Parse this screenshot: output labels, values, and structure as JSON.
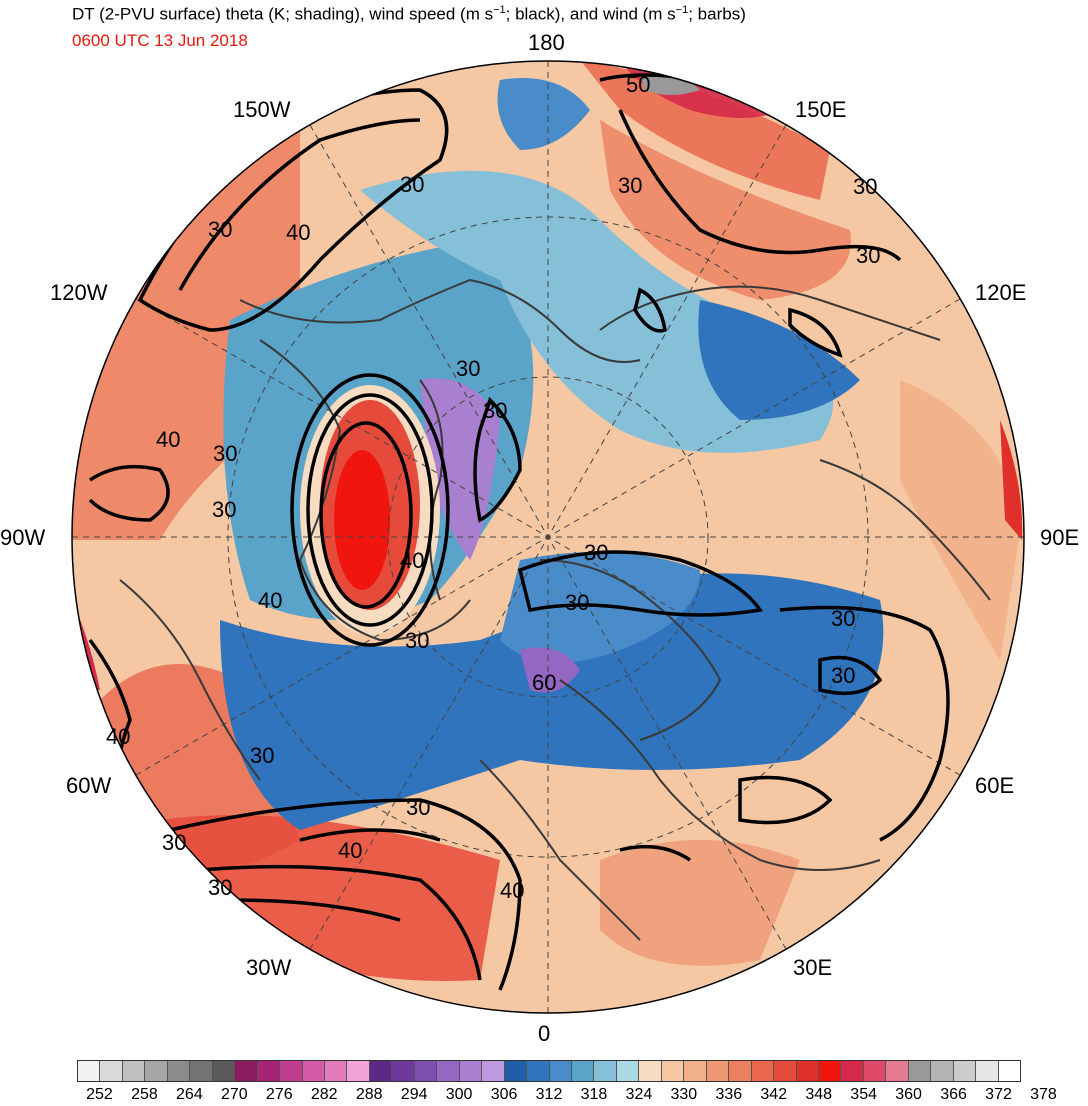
{
  "title": {
    "main_before": "DT (2-PVU surface) theta (K; shading), wind speed (m s",
    "main_sup": "−1",
    "main_middle": "; black), and wind (m s",
    "main_sup2": "−1",
    "main_after": "; barbs)",
    "valid_time": "0600 UTC 13 Jun 2018"
  },
  "map": {
    "projection": "north-polar-stereographic",
    "longitude_labels": {
      "top": "180",
      "top_right": "150E",
      "upper_right": "120E",
      "right": "90E",
      "lower_right": "60E",
      "bottom_right": "30E",
      "bottom": "0",
      "bottom_left": "30W",
      "lower_left": "60W",
      "left": "90W",
      "upper_left": "120W",
      "top_left": "150W"
    },
    "contour_labels": [
      "50",
      "30",
      "30",
      "30",
      "30",
      "40",
      "30",
      "30",
      "30",
      "30",
      "40",
      "30",
      "40",
      "30",
      "30",
      "30",
      "30",
      "30",
      "40",
      "60",
      "40",
      "30",
      "30",
      "40",
      "30",
      "30",
      "40"
    ]
  },
  "colorbar": {
    "tick_labels": [
      "252",
      "258",
      "264",
      "270",
      "276",
      "282",
      "288",
      "294",
      "300",
      "306",
      "312",
      "318",
      "324",
      "330",
      "336",
      "342",
      "348",
      "354",
      "360",
      "366",
      "372",
      "378"
    ],
    "colors": [
      "#f2f2f2",
      "#d9d9d9",
      "#bfbfbf",
      "#a6a6a6",
      "#8c8c8c",
      "#737373",
      "#5a5a5a",
      "#8b1a5e",
      "#a62474",
      "#bf3d8c",
      "#d65aa5",
      "#e27cbb",
      "#f0a3d6",
      "#5b2a86",
      "#6d3a9c",
      "#7f4fb0",
      "#9467c2",
      "#a97fd0",
      "#bd9ade",
      "#1f5fa8",
      "#2f74bd",
      "#4a8cc9",
      "#5aa3c9",
      "#86c0d8",
      "#add8e6",
      "#f7dcc2",
      "#f5c7a3",
      "#f2b08a",
      "#ef9874",
      "#ec7f5f",
      "#e9674c",
      "#e64a3a",
      "#e0302c",
      "#f0150f",
      "#d62a4a",
      "#e04a6a",
      "#e57a93",
      "#999999",
      "#b3b3b3",
      "#cccccc",
      "#e6e6e6",
      "#ffffff"
    ]
  },
  "colors": {
    "title": "#000000",
    "valid_time": "#e8170d",
    "contour": "#000000",
    "coastline": "#3a3a3a"
  }
}
